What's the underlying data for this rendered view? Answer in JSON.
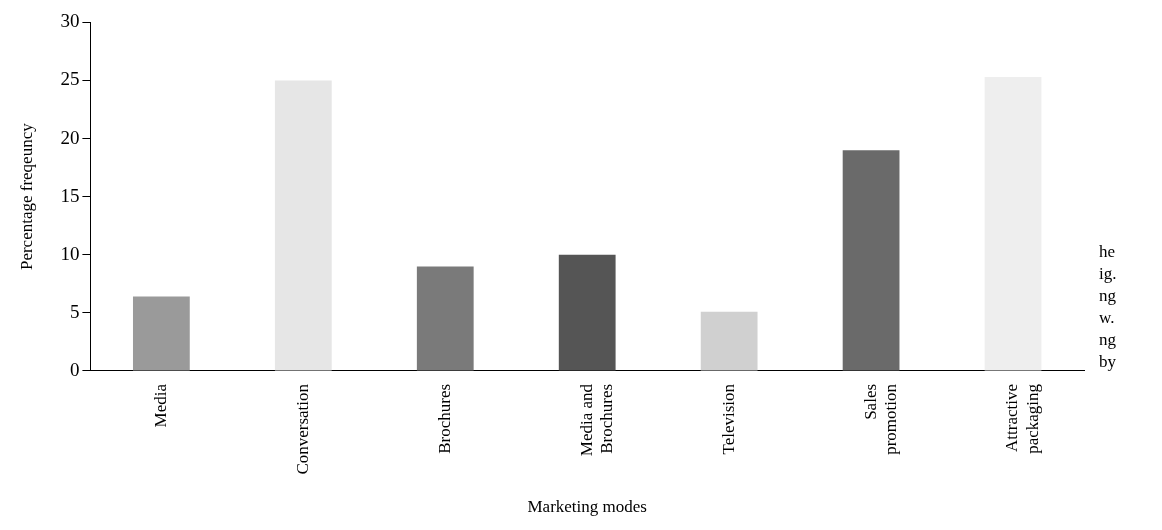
{
  "chart_data": {
    "type": "bar",
    "xlabel": "Marketing modes",
    "ylabel": "Percentage freqeuncy",
    "categories": [
      "Media",
      "Conversation",
      "Brochures",
      "Media and Brochures",
      "Television",
      "Sales promotion",
      "Attractive packaging"
    ],
    "values": [
      6.4,
      25.0,
      9.0,
      10.0,
      5.1,
      19.0,
      25.3
    ],
    "colors": [
      "#9a9a9a",
      "#e6e6e6",
      "#7a7a7a",
      "#555555",
      "#d0d0d0",
      "#6a6a6a",
      "#eeeeee"
    ],
    "ylim": [
      0,
      30
    ],
    "yticks": [
      0,
      5,
      10,
      15,
      20,
      25,
      30
    ],
    "grid": false,
    "legend": false,
    "annotations": [
      "he",
      "ig.",
      "ng",
      "w.",
      "ng",
      "by"
    ]
  }
}
